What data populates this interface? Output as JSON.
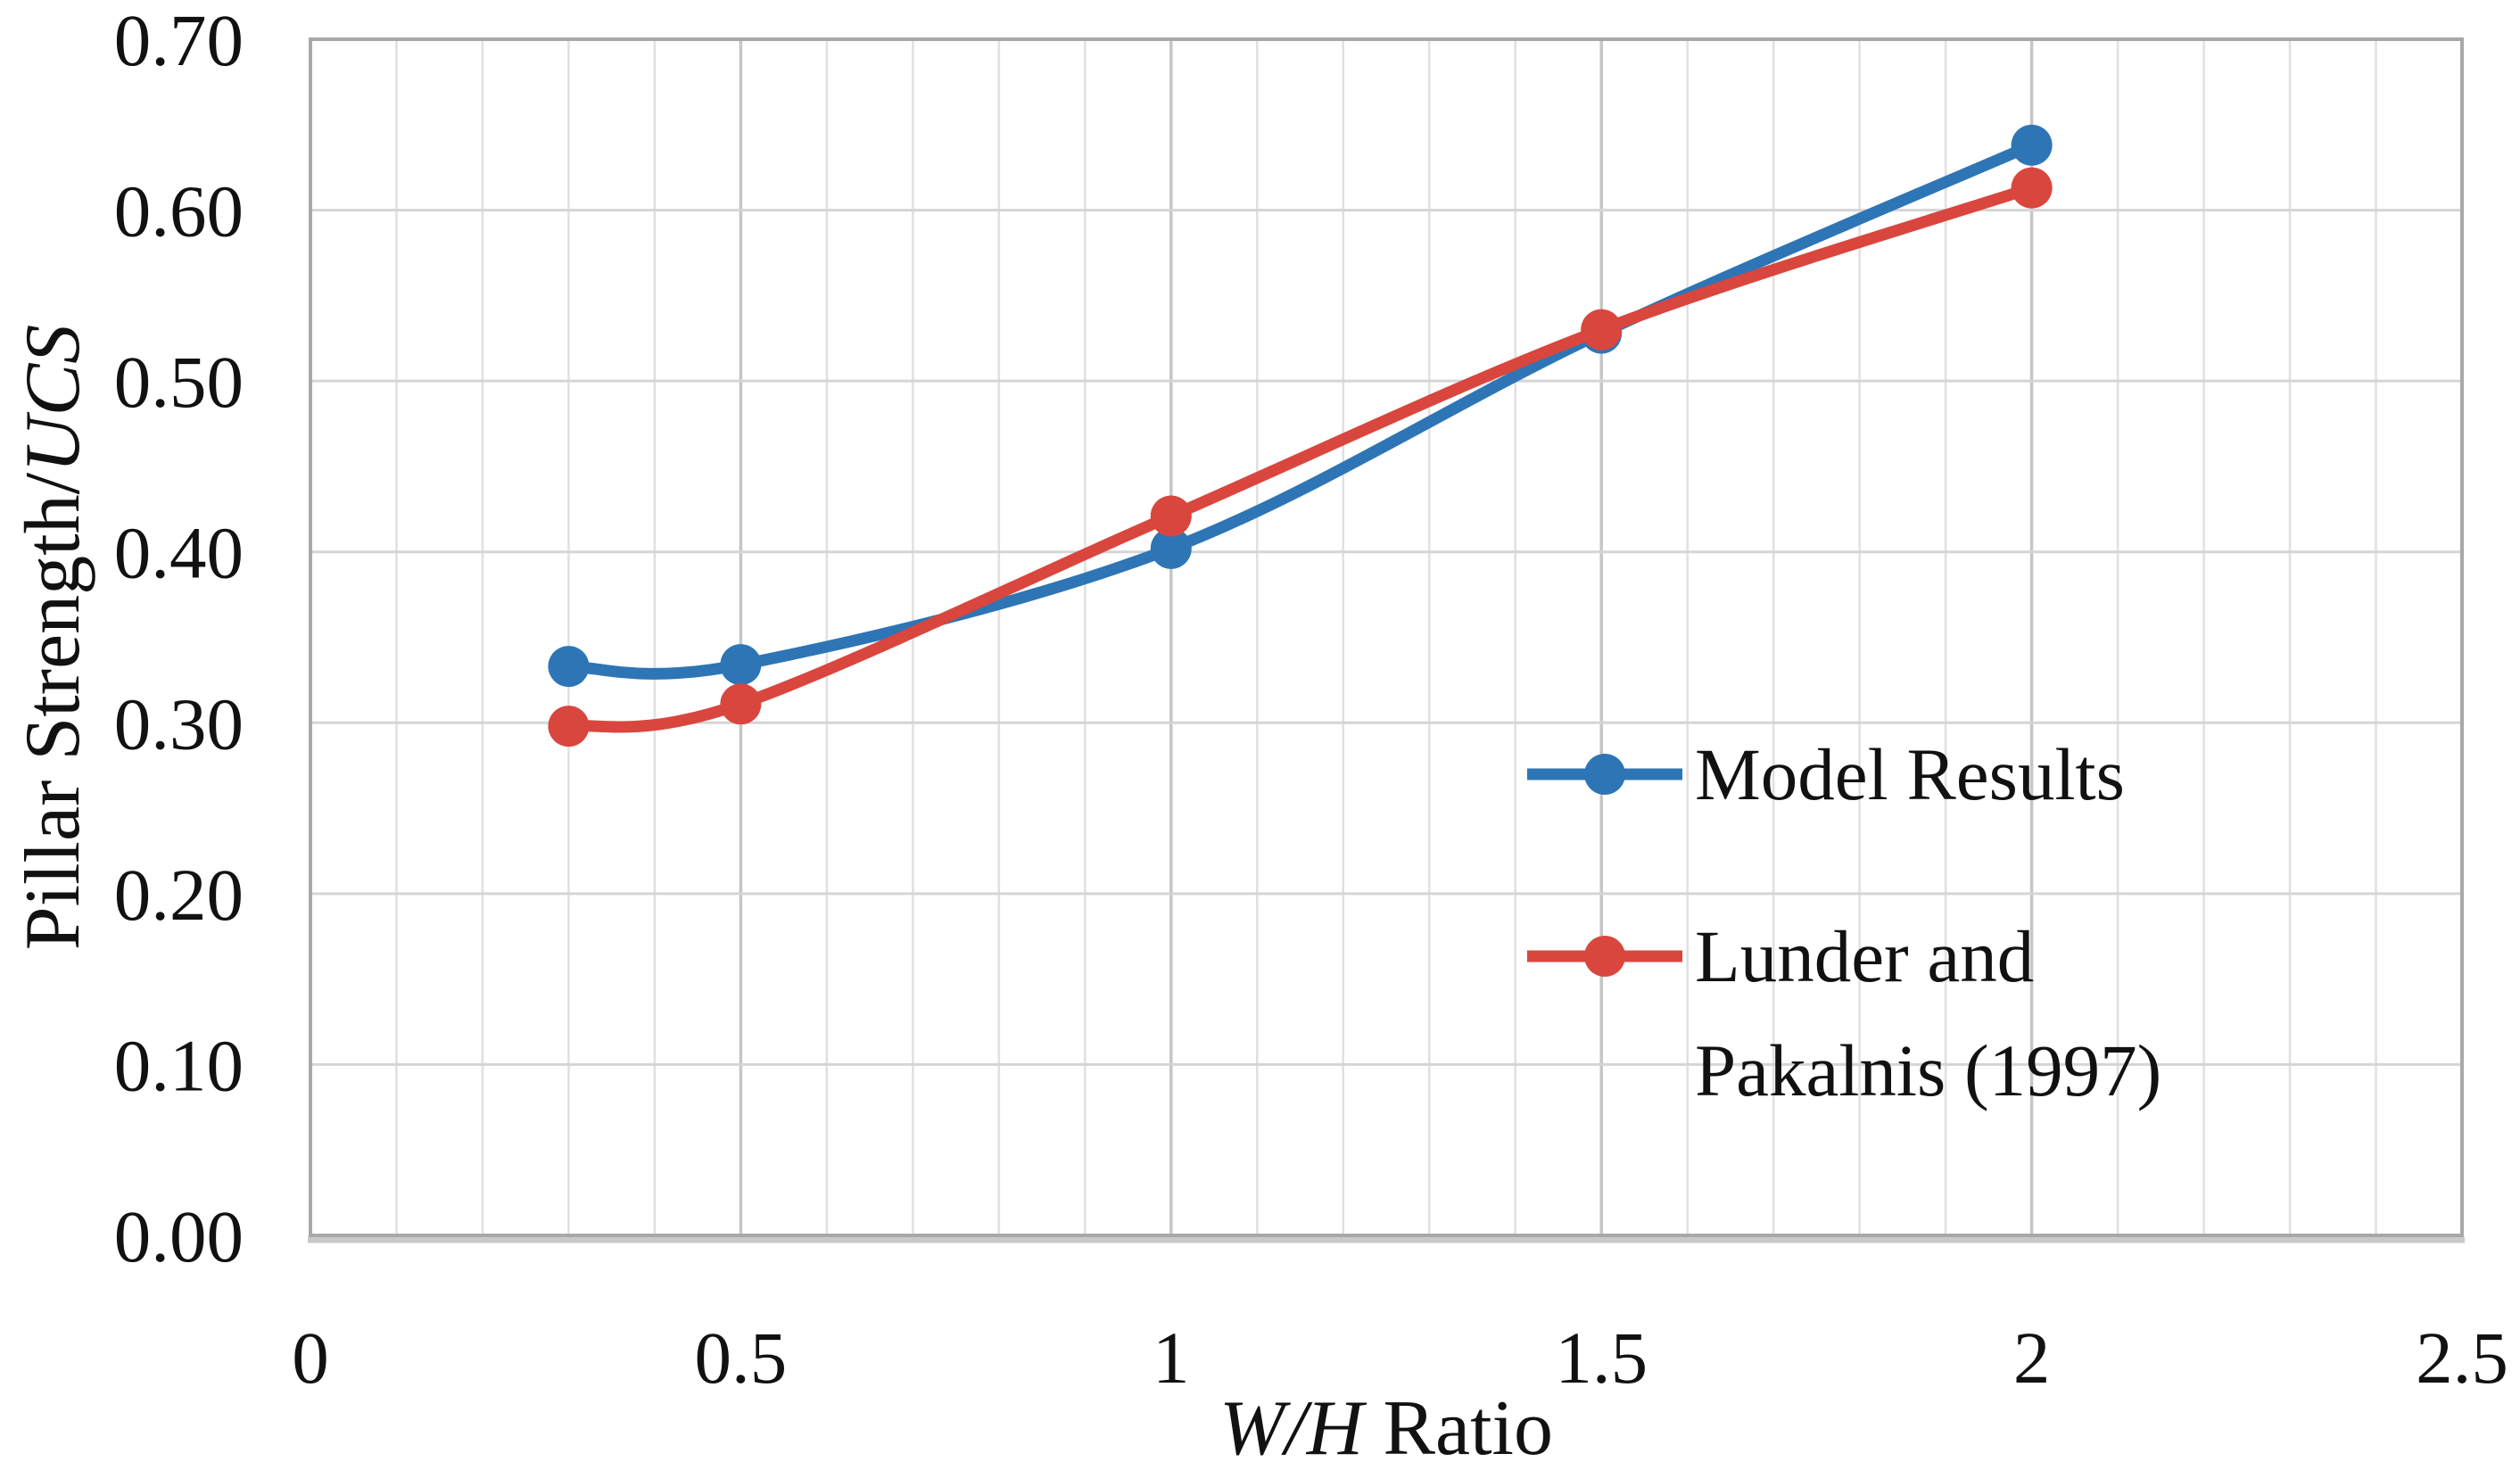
{
  "chart_data": {
    "type": "line",
    "title": "",
    "x": [
      0.3,
      0.5,
      1,
      1.5,
      2
    ],
    "series": [
      {
        "name": "Model Results",
        "legend_lines": [
          "Model Results"
        ],
        "color": "#2E75B6",
        "values": [
          0.333,
          0.334,
          0.402,
          0.528,
          0.638
        ]
      },
      {
        "name": "Lunder and Pakalnis (1997)",
        "legend_lines": [
          "Lunder and",
          "Pakalnis (1997)"
        ],
        "color": "#D9463E",
        "values": [
          0.298,
          0.311,
          0.421,
          0.53,
          0.613
        ]
      }
    ],
    "xlabel": {
      "italic": "W/H",
      "regular": " Ratio"
    },
    "ylabel": {
      "regular": "Pillar Strength/",
      "italic": "UCS"
    },
    "xlim": [
      0,
      2.5
    ],
    "ylim": [
      0,
      0.7
    ],
    "x_ticks": [
      0,
      0.5,
      1,
      1.5,
      2,
      2.5
    ],
    "x_tick_labels": [
      "0",
      "0.5",
      "1",
      "1.5",
      "2",
      "2.5"
    ],
    "x_minor_step": 0.1,
    "y_ticks": [
      0.0,
      0.1,
      0.2,
      0.3,
      0.4,
      0.5,
      0.6,
      0.7
    ],
    "y_tick_labels": [
      "0.00",
      "0.10",
      "0.20",
      "0.30",
      "0.40",
      "0.50",
      "0.60",
      "0.70"
    ],
    "grid": "minor-x and major-x vertical, major-y horizontal",
    "legend_position": "inside right-middle",
    "smooth_lines": true,
    "marker": "circle"
  }
}
